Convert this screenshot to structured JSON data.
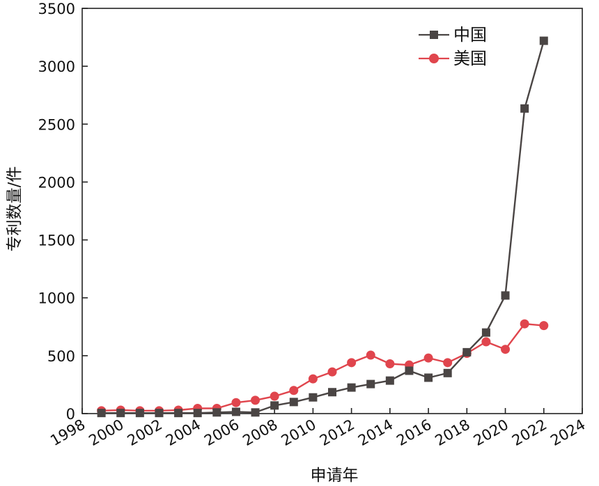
{
  "chart_data": {
    "type": "line",
    "xlabel": "申请年",
    "ylabel": "专利数量/件",
    "xlim": [
      1998,
      2024
    ],
    "ylim": [
      0,
      3500
    ],
    "x_ticks": [
      "1998",
      "2000",
      "2002",
      "2004",
      "2006",
      "2008",
      "2010",
      "2012",
      "2014",
      "2016",
      "2018",
      "2020",
      "2022",
      "2024"
    ],
    "y_ticks": [
      "0",
      "500",
      "1000",
      "1500",
      "2000",
      "2500",
      "3000",
      "3500"
    ],
    "legend_position": "top-right",
    "grid": false,
    "series": [
      {
        "name": "中国",
        "color": "#4a4544",
        "marker": "square",
        "x": [
          1999,
          2000,
          2001,
          2002,
          2003,
          2004,
          2005,
          2006,
          2007,
          2008,
          2009,
          2010,
          2011,
          2012,
          2013,
          2014,
          2015,
          2016,
          2017,
          2018,
          2019,
          2020,
          2021,
          2022
        ],
        "values": [
          5,
          5,
          5,
          5,
          5,
          5,
          10,
          15,
          10,
          70,
          100,
          140,
          185,
          225,
          255,
          285,
          370,
          310,
          350,
          530,
          700,
          1020,
          2635,
          3220
        ]
      },
      {
        "name": "美国",
        "color": "#e0454d",
        "marker": "circle",
        "x": [
          1999,
          2000,
          2001,
          2002,
          2003,
          2004,
          2005,
          2006,
          2007,
          2008,
          2009,
          2010,
          2011,
          2012,
          2013,
          2014,
          2015,
          2016,
          2017,
          2018,
          2019,
          2020,
          2021,
          2022
        ],
        "values": [
          25,
          30,
          25,
          25,
          30,
          45,
          45,
          95,
          115,
          150,
          200,
          300,
          360,
          440,
          505,
          430,
          420,
          480,
          440,
          520,
          620,
          555,
          775,
          760
        ]
      }
    ]
  }
}
